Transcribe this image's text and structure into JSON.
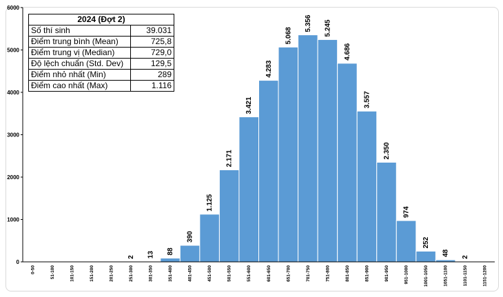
{
  "stats_table": {
    "title": "2024 (Đợt 2)",
    "rows": [
      {
        "label": "Số thí sinh",
        "value": "39.031"
      },
      {
        "label": "Điểm trung bình (Mean)",
        "value": "725,8"
      },
      {
        "label": "Điểm trung vị (Median)",
        "value": "729,0"
      },
      {
        "label": "Độ lệch chuẩn (Std. Dev)",
        "value": "129,5"
      },
      {
        "label": "Điểm nhỏ nhất (Min)",
        "value": "289"
      },
      {
        "label": "Điểm cao nhất (Max)",
        "value": "1.116"
      }
    ]
  },
  "chart_data": {
    "type": "bar",
    "title": "",
    "xlabel": "",
    "ylabel": "",
    "ylim": [
      0,
      6000
    ],
    "yticks": [
      0,
      1000,
      2000,
      3000,
      4000,
      5000,
      6000
    ],
    "grid": false,
    "bar_color": "#5b9bd5",
    "categories": [
      "0-50",
      "51-100",
      "101-150",
      "151-200",
      "201-250",
      "251-300",
      "301-350",
      "351-400",
      "401-450",
      "451-500",
      "501-550",
      "551-600",
      "601-650",
      "651-700",
      "701-750",
      "751-800",
      "801-850",
      "851-900",
      "901-950",
      "951-1000",
      "1001-1050",
      "1051-1100",
      "1101-1150",
      "1151-1200"
    ],
    "values": [
      0,
      0,
      0,
      0,
      0,
      2,
      13,
      88,
      390,
      1125,
      2171,
      3421,
      4283,
      5068,
      5356,
      5245,
      4686,
      3557,
      2350,
      974,
      252,
      48,
      2,
      0
    ],
    "data_labels": [
      "",
      "",
      "",
      "",
      "",
      "2",
      "13",
      "88",
      "390",
      "1.125",
      "2.171",
      "3.421",
      "4.283",
      "5.068",
      "5.356",
      "5.245",
      "4.686",
      "3.557",
      "2.350",
      "974",
      "252",
      "48",
      "2",
      ""
    ]
  }
}
